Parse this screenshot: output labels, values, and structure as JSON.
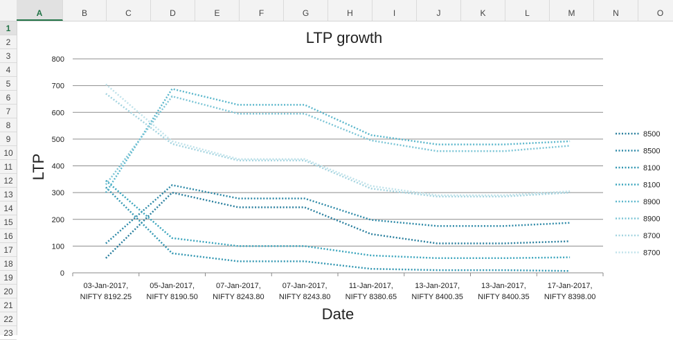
{
  "sheet": {
    "columns": [
      "A",
      "B",
      "C",
      "D",
      "E",
      "F",
      "G",
      "H",
      "I",
      "J",
      "K",
      "L",
      "M",
      "N",
      "O"
    ],
    "rows": [
      "1",
      "2",
      "3",
      "4",
      "5",
      "6",
      "7",
      "8",
      "9",
      "10",
      "11",
      "12",
      "13",
      "14",
      "15",
      "16",
      "17",
      "18",
      "19",
      "20",
      "21",
      "22",
      "23"
    ],
    "active_column": "A",
    "active_row": "1"
  },
  "chart_data": {
    "type": "line",
    "title": "LTP growth",
    "xlabel": "Date",
    "ylabel": "LTP",
    "ylim": [
      0,
      800
    ],
    "yticks": [
      0,
      100,
      200,
      300,
      400,
      500,
      600,
      700,
      800
    ],
    "grid": true,
    "legend_position": "right",
    "categories": [
      [
        "03-Jan-2017,",
        "NIFTY 8192.25"
      ],
      [
        "05-Jan-2017,",
        "NIFTY 8190.50"
      ],
      [
        "07-Jan-2017,",
        "NIFTY 8243.80"
      ],
      [
        "07-Jan-2017,",
        "NIFTY 8243.80"
      ],
      [
        "11-Jan-2017,",
        "NIFTY 8380.65"
      ],
      [
        "13-Jan-2017,",
        "NIFTY 8400.35"
      ],
      [
        "13-Jan-2017,",
        "NIFTY 8400.35"
      ],
      [
        "17-Jan-2017,",
        "NIFTY 8398.00"
      ]
    ],
    "series": [
      {
        "name": "8500",
        "color": "#2a7f9e",
        "values": [
          55,
          300,
          245,
          245,
          145,
          110,
          110,
          118
        ]
      },
      {
        "name": "8500",
        "color": "#2f8aa8",
        "values": [
          110,
          328,
          278,
          278,
          198,
          175,
          175,
          187
        ]
      },
      {
        "name": "8100",
        "color": "#3397b2",
        "values": [
          320,
          73,
          43,
          43,
          15,
          10,
          10,
          7
        ]
      },
      {
        "name": "8100",
        "color": "#3ba5bd",
        "values": [
          345,
          130,
          100,
          100,
          65,
          55,
          55,
          58
        ]
      },
      {
        "name": "8900",
        "color": "#5bb7cc",
        "values": [
          300,
          688,
          628,
          628,
          515,
          480,
          480,
          492
        ]
      },
      {
        "name": "8900",
        "color": "#7cc5d6",
        "values": [
          330,
          660,
          595,
          595,
          495,
          455,
          455,
          475
        ]
      },
      {
        "name": "8700",
        "color": "#a4d4e0",
        "values": [
          670,
          482,
          420,
          420,
          315,
          285,
          285,
          300
        ]
      },
      {
        "name": "8700",
        "color": "#bfe2ea",
        "values": [
          705,
          492,
          425,
          425,
          325,
          290,
          290,
          305
        ]
      }
    ]
  }
}
